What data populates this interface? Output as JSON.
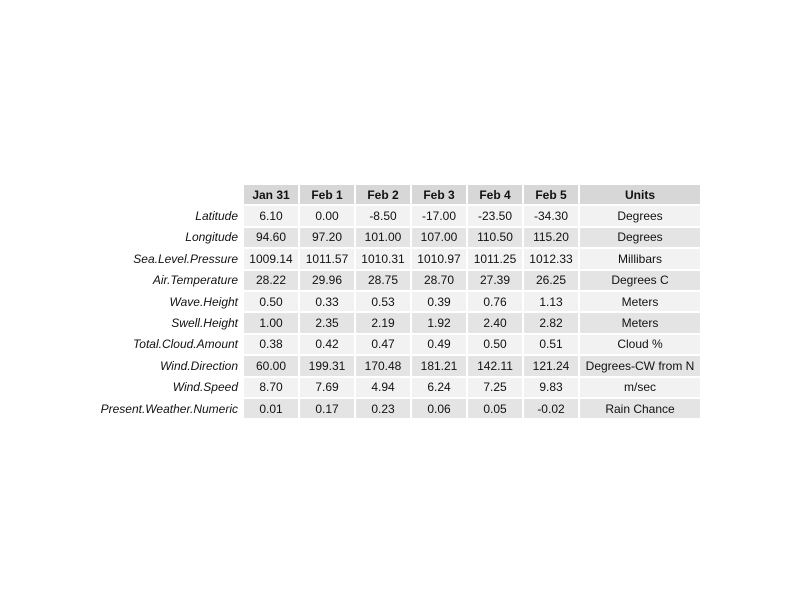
{
  "table": {
    "columns": [
      "Jan 31",
      "Feb 1",
      "Feb 2",
      "Feb 3",
      "Feb 4",
      "Feb 5",
      "Units"
    ],
    "rows": [
      {
        "label": "Latitude",
        "values": [
          "6.10",
          "0.00",
          "-8.50",
          "-17.00",
          "-23.50",
          "-34.30"
        ],
        "units": "Degrees"
      },
      {
        "label": "Longitude",
        "values": [
          "94.60",
          "97.20",
          "101.00",
          "107.00",
          "110.50",
          "115.20"
        ],
        "units": "Degrees"
      },
      {
        "label": "Sea.Level.Pressure",
        "values": [
          "1009.14",
          "1011.57",
          "1010.31",
          "1010.97",
          "1011.25",
          "1012.33"
        ],
        "units": "Millibars"
      },
      {
        "label": "Air.Temperature",
        "values": [
          "28.22",
          "29.96",
          "28.75",
          "28.70",
          "27.39",
          "26.25"
        ],
        "units": "Degrees C"
      },
      {
        "label": "Wave.Height",
        "values": [
          "0.50",
          "0.33",
          "0.53",
          "0.39",
          "0.76",
          "1.13"
        ],
        "units": "Meters"
      },
      {
        "label": "Swell.Height",
        "values": [
          "1.00",
          "2.35",
          "2.19",
          "1.92",
          "2.40",
          "2.82"
        ],
        "units": "Meters"
      },
      {
        "label": "Total.Cloud.Amount",
        "values": [
          "0.38",
          "0.42",
          "0.47",
          "0.49",
          "0.50",
          "0.51"
        ],
        "units": "Cloud %"
      },
      {
        "label": "Wind.Direction",
        "values": [
          "60.00",
          "199.31",
          "170.48",
          "181.21",
          "142.11",
          "121.24"
        ],
        "units": "Degrees-CW from N"
      },
      {
        "label": "Wind.Speed",
        "values": [
          "8.70",
          "7.69",
          "4.94",
          "6.24",
          "7.25",
          "9.83"
        ],
        "units": "m/sec"
      },
      {
        "label": "Present.Weather.Numeric",
        "values": [
          "0.01",
          "0.17",
          "0.23",
          "0.06",
          "0.05",
          "-0.02"
        ],
        "units": "Rain Chance"
      }
    ]
  }
}
